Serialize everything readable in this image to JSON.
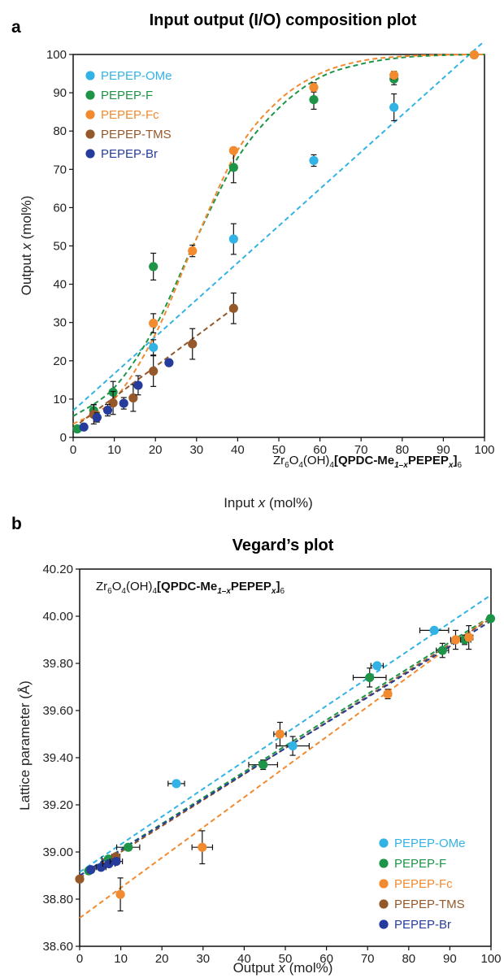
{
  "colors": {
    "OMe": "#33b3e5",
    "F": "#1e9448",
    "Fc": "#f28a30",
    "TMS": "#94582a",
    "Br": "#263c9c",
    "axis": "#111111"
  },
  "panel_a": {
    "letter": "a",
    "formula": {
      "p1": "Zr",
      "s1": "6",
      "p2": "O",
      "s2": "4",
      "p3": "(OH)",
      "s3": "4",
      "p4": "[QPDC-Me",
      "s4": "1–x",
      "p5": "PEPEP",
      "s5": "x",
      "p6": "]",
      "s6": "6"
    }
  },
  "panel_b": {
    "letter": "b",
    "formula": {
      "p1": "Zr",
      "s1": "6",
      "p2": "O",
      "s2": "4",
      "p3": "(OH)",
      "s3": "4",
      "p4": "[QPDC-Me",
      "s4": "1–x",
      "p5": "PEPEP",
      "s5": "x",
      "p6": "]",
      "s6": "6"
    }
  },
  "chart_data": [
    {
      "type": "scatter",
      "title": "Input output (I/O) composition plot",
      "xlabel_parts": [
        "Input ",
        "x",
        " (mol%)"
      ],
      "ylabel_parts": [
        "Output ",
        "x",
        " (mol%)"
      ],
      "xlim": [
        0,
        100
      ],
      "ylim": [
        0,
        100
      ],
      "xticks": [
        0,
        10,
        20,
        30,
        40,
        50,
        60,
        70,
        80,
        90,
        100
      ],
      "yticks": [
        0,
        10,
        20,
        30,
        40,
        50,
        60,
        70,
        80,
        90,
        100
      ],
      "grid": false,
      "legend_position": "top-left",
      "series": [
        {
          "name": "PEPEP-OMe",
          "color_key": "OMe",
          "points": [
            {
              "x": 19.5,
              "y": 23.5,
              "yerr": 2.0
            },
            {
              "x": 39,
              "y": 51.8,
              "yerr": 4.0
            },
            {
              "x": 58.5,
              "y": 72.3,
              "yerr": 1.5
            },
            {
              "x": 78,
              "y": 86.2,
              "yerr": 3.5
            }
          ],
          "fit": {
            "kind": "line",
            "x": [
              0,
              100
            ],
            "y": [
              7.0,
              103.5
            ]
          }
        },
        {
          "name": "PEPEP-F",
          "color_key": "F",
          "points": [
            {
              "x": 1,
              "y": 2.2,
              "yerr": 0.6
            },
            {
              "x": 5,
              "y": 7.0,
              "yerr": 1.6
            },
            {
              "x": 9.7,
              "y": 11.8,
              "yerr": 2.8
            },
            {
              "x": 19.5,
              "y": 44.6,
              "yerr": 3.5
            },
            {
              "x": 39,
              "y": 70.5,
              "yerr": 4.0
            },
            {
              "x": 58.5,
              "y": 88.2,
              "yerr": 2.5
            },
            {
              "x": 78,
              "y": 93.6,
              "yerr": 1.5
            },
            {
              "x": 97.5,
              "y": 99.9,
              "yerr": 0.3
            }
          ],
          "fit": {
            "kind": "curve",
            "x": [
              0,
              10,
              20,
              30,
              40,
              50,
              60,
              70,
              80,
              90,
              100
            ],
            "y": [
              5.5,
              13,
              29,
              52,
              73,
              86,
              94,
              97.5,
              99.2,
              99.8,
              100
            ]
          }
        },
        {
          "name": "PEPEP-Fc",
          "color_key": "Fc",
          "points": [
            {
              "x": 19.5,
              "y": 29.8,
              "yerr": 2.5
            },
            {
              "x": 29,
              "y": 48.7,
              "yerr": 1.5
            },
            {
              "x": 39,
              "y": 74.9,
              "yerr": 0.8
            },
            {
              "x": 58.5,
              "y": 91.4,
              "yerr": 1.2
            },
            {
              "x": 78,
              "y": 94.6,
              "yerr": 1.0
            },
            {
              "x": 97.5,
              "y": 99.9,
              "yerr": 0.3
            }
          ],
          "fit": {
            "kind": "curve",
            "x": [
              0,
              10,
              20,
              30,
              40,
              50,
              60,
              70,
              80,
              90,
              100
            ],
            "y": [
              3.5,
              10,
              27,
              52,
              75,
              88,
              95,
              98.3,
              99.5,
              99.9,
              100
            ]
          }
        },
        {
          "name": "PEPEP-TMS",
          "color_key": "TMS",
          "points": [
            {
              "x": 5,
              "y": 6.0,
              "yerr": 2.5
            },
            {
              "x": 9.7,
              "y": 9.0,
              "yerr": 3.0
            },
            {
              "x": 14.6,
              "y": 10.3,
              "yerr": 3.5
            },
            {
              "x": 19.5,
              "y": 17.3,
              "yerr": 4.0
            },
            {
              "x": 29,
              "y": 24.4,
              "yerr": 4.0
            },
            {
              "x": 39,
              "y": 33.7,
              "yerr": 4.0
            }
          ],
          "fit": {
            "kind": "line",
            "x": [
              0,
              39
            ],
            "y": [
              2.5,
              33.7
            ]
          }
        },
        {
          "name": "PEPEP-Br",
          "color_key": "Br",
          "points": [
            {
              "x": 2.6,
              "y": 2.7,
              "yerr": 0.8
            },
            {
              "x": 5.8,
              "y": 5.2,
              "yerr": 1.2
            },
            {
              "x": 8.4,
              "y": 7.1,
              "yerr": 1.5
            },
            {
              "x": 12.3,
              "y": 8.9,
              "yerr": 1.5
            },
            {
              "x": 15.8,
              "y": 13.6,
              "yerr": 2.5
            },
            {
              "x": 23.3,
              "y": 19.5,
              "yerr": 0.6
            }
          ],
          "fit": null
        }
      ]
    },
    {
      "type": "scatter",
      "title": "Vegard’s plot",
      "xlabel_parts": [
        "Output ",
        "x",
        " (mol%)"
      ],
      "ylabel_parts": [
        "Lattice parameter (Å)"
      ],
      "xlim": [
        0,
        100
      ],
      "ylim": [
        38.6,
        40.2
      ],
      "xticks": [
        0,
        10,
        20,
        30,
        40,
        50,
        60,
        70,
        80,
        90,
        100
      ],
      "yticks": [
        "38.60",
        "38.80",
        "39.00",
        "39.20",
        "39.40",
        "39.60",
        "39.80",
        "40.00",
        "40.20"
      ],
      "grid": false,
      "legend_position": "bottom-right",
      "series": [
        {
          "name": "PEPEP-OMe",
          "color_key": "OMe",
          "points": [
            {
              "x": 23.5,
              "y": 39.29,
              "xerr": 2.0,
              "yerr": 0.01
            },
            {
              "x": 51.8,
              "y": 39.45,
              "xerr": 4.0,
              "yerr": 0.04
            },
            {
              "x": 72.3,
              "y": 39.79,
              "xerr": 1.5,
              "yerr": 0.01
            },
            {
              "x": 86.2,
              "y": 39.94,
              "xerr": 3.5,
              "yerr": 0.01
            }
          ],
          "fit": {
            "x": [
              0,
              100
            ],
            "y": [
              38.915,
              40.09
            ]
          }
        },
        {
          "name": "PEPEP-F",
          "color_key": "F",
          "points": [
            {
              "x": 2.2,
              "y": 38.92,
              "xerr": 0.6,
              "yerr": 0.01
            },
            {
              "x": 7.0,
              "y": 38.97,
              "xerr": 1.6,
              "yerr": 0.01
            },
            {
              "x": 11.8,
              "y": 39.02,
              "xerr": 2.8,
              "yerr": 0.01
            },
            {
              "x": 44.6,
              "y": 39.37,
              "xerr": 3.5,
              "yerr": 0.02
            },
            {
              "x": 70.5,
              "y": 39.74,
              "xerr": 4.0,
              "yerr": 0.04
            },
            {
              "x": 88.2,
              "y": 39.855,
              "xerr": 1.5,
              "yerr": 0.03
            },
            {
              "x": 93.6,
              "y": 39.9,
              "xerr": 1.5,
              "yerr": 0.02
            },
            {
              "x": 99.9,
              "y": 39.99,
              "xerr": 0.3,
              "yerr": 0.01
            }
          ],
          "fit": {
            "x": [
              0,
              100
            ],
            "y": [
              38.9,
              40.0
            ]
          }
        },
        {
          "name": "PEPEP-Fc",
          "color_key": "Fc",
          "points": [
            {
              "x": 9.9,
              "y": 38.82,
              "xerr": 0.5,
              "yerr": 0.07
            },
            {
              "x": 29.8,
              "y": 39.02,
              "xerr": 2.5,
              "yerr": 0.07
            },
            {
              "x": 48.7,
              "y": 39.5,
              "xerr": 1.5,
              "yerr": 0.05
            },
            {
              "x": 74.9,
              "y": 39.67,
              "xerr": 0.8,
              "yerr": 0.02
            },
            {
              "x": 91.4,
              "y": 39.9,
              "xerr": 1.2,
              "yerr": 0.04
            },
            {
              "x": 94.6,
              "y": 39.91,
              "xerr": 1.0,
              "yerr": 0.05
            }
          ],
          "fit": {
            "x": [
              0,
              100
            ],
            "y": [
              38.72,
              40.0
            ]
          }
        },
        {
          "name": "PEPEP-TMS",
          "color_key": "TMS",
          "points": [
            {
              "x": 0,
              "y": 38.885,
              "xerr": 0.3,
              "yerr": 0.01
            },
            {
              "x": 8.8,
              "y": 38.98,
              "xerr": 1.0,
              "yerr": 0.01
            }
          ],
          "fit": {
            "x": [
              0,
              100
            ],
            "y": [
              38.89,
              39.99
            ]
          }
        },
        {
          "name": "PEPEP-Br",
          "color_key": "Br",
          "points": [
            {
              "x": 2.7,
              "y": 38.925,
              "xerr": 0.8,
              "yerr": 0.01
            },
            {
              "x": 5.2,
              "y": 38.935,
              "xerr": 1.2,
              "yerr": 0.01
            },
            {
              "x": 7.1,
              "y": 38.95,
              "xerr": 1.5,
              "yerr": 0.01
            },
            {
              "x": 8.9,
              "y": 38.96,
              "xerr": 1.5,
              "yerr": 0.01
            }
          ],
          "fit": {
            "x": [
              0,
              100
            ],
            "y": [
              38.9,
              39.98
            ]
          }
        }
      ]
    }
  ]
}
